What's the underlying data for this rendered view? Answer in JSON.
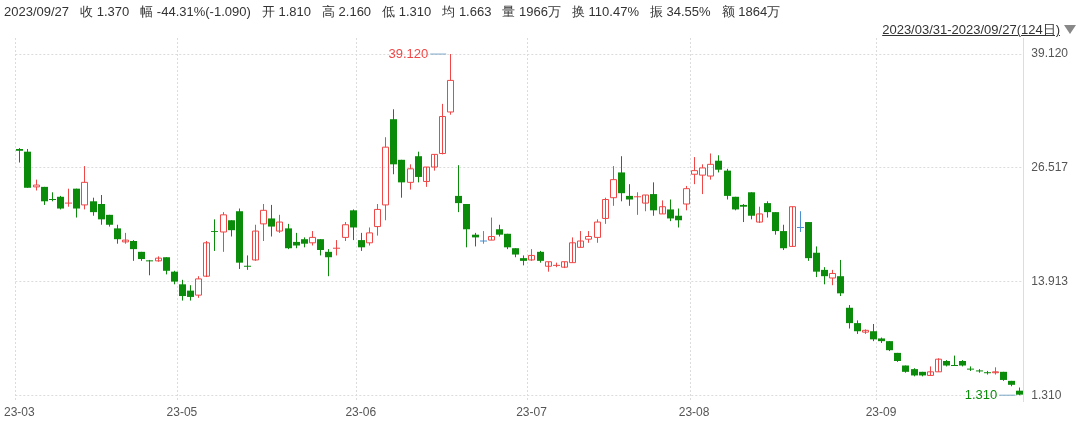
{
  "chart_data": {
    "type": "candlestick",
    "categories": [
      "23-03",
      null,
      null,
      null,
      null,
      null,
      null,
      null,
      null,
      null,
      null,
      null,
      null,
      null,
      null,
      null,
      null,
      null,
      null,
      null,
      "23-05",
      null,
      null,
      null,
      null,
      null,
      null,
      null,
      null,
      null,
      null,
      null,
      null,
      null,
      null,
      null,
      null,
      null,
      null,
      null,
      null,
      null,
      "23-06",
      null,
      null,
      null,
      null,
      null,
      null,
      null,
      null,
      null,
      null,
      null,
      null,
      null,
      null,
      null,
      null,
      null,
      null,
      null,
      null,
      "23-07",
      null,
      null,
      null,
      null,
      null,
      null,
      null,
      null,
      null,
      null,
      null,
      null,
      null,
      null,
      null,
      null,
      null,
      null,
      null,
      "23-08",
      null,
      null,
      null,
      null,
      null,
      null,
      null,
      null,
      null,
      null,
      null,
      null,
      null,
      null,
      null,
      null,
      null,
      null,
      null,
      null,
      null,
      null,
      "23-09",
      null,
      null,
      null,
      null,
      null,
      null,
      null,
      null,
      null,
      null,
      null,
      null,
      null,
      null,
      null,
      null,
      null
    ],
    "ohlc": [
      [
        28.6,
        28.7,
        27.1,
        28.4
      ],
      [
        28.3,
        28.6,
        24.3,
        24.3
      ],
      [
        24.4,
        25.2,
        24.0,
        24.6
      ],
      [
        24.4,
        24.4,
        22.4,
        22.8
      ],
      [
        23.0,
        23.8,
        22.8,
        23.0
      ],
      [
        23.3,
        23.4,
        21.9,
        22.0
      ],
      [
        22.6,
        24.2,
        22.2,
        22.6
      ],
      [
        24.2,
        24.2,
        21.0,
        22.0
      ],
      [
        22.4,
        26.7,
        21.9,
        24.9
      ],
      [
        22.8,
        23.2,
        21.2,
        21.6
      ],
      [
        22.5,
        23.5,
        20.2,
        20.8
      ],
      [
        21.3,
        21.3,
        20.0,
        20.2
      ],
      [
        19.8,
        20.2,
        18.1,
        18.6
      ],
      [
        18.3,
        19.3,
        18.1,
        18.5
      ],
      [
        18.4,
        18.5,
        16.2,
        17.5
      ],
      [
        17.2,
        17.2,
        16.2,
        16.4
      ],
      [
        16.2,
        16.3,
        14.6,
        16.2
      ],
      [
        16.2,
        16.7,
        16.1,
        16.5
      ],
      [
        16.6,
        16.6,
        14.7,
        15.1
      ],
      [
        15.0,
        15.1,
        13.6,
        13.9
      ],
      [
        13.6,
        14.1,
        11.8,
        12.3
      ],
      [
        12.9,
        13.5,
        11.8,
        12.2
      ],
      [
        12.4,
        14.5,
        12.1,
        14.2
      ],
      [
        14.5,
        18.4,
        14.4,
        18.2
      ],
      [
        19.5,
        20.8,
        17.3,
        19.4
      ],
      [
        19.4,
        21.6,
        17.2,
        21.3
      ],
      [
        20.7,
        20.7,
        18.9,
        19.6
      ],
      [
        21.7,
        22.0,
        15.3,
        16.0
      ],
      [
        15.6,
        16.8,
        15.2,
        15.6
      ],
      [
        16.3,
        20.2,
        16.2,
        19.5
      ],
      [
        20.3,
        22.5,
        18.4,
        21.8
      ],
      [
        20.9,
        22.4,
        18.9,
        20.0
      ],
      [
        19.5,
        21.3,
        19.3,
        20.5
      ],
      [
        19.8,
        20.3,
        17.5,
        17.6
      ],
      [
        18.3,
        19.3,
        17.6,
        17.9
      ],
      [
        18.6,
        18.8,
        17.7,
        18.1
      ],
      [
        18.2,
        19.5,
        17.9,
        18.8
      ],
      [
        18.6,
        18.6,
        16.8,
        17.4
      ],
      [
        17.2,
        17.5,
        14.5,
        16.6
      ],
      [
        17.6,
        18.5,
        16.8,
        17.6
      ],
      [
        18.8,
        20.5,
        18.4,
        20.2
      ],
      [
        21.8,
        21.9,
        18.5,
        19.9
      ],
      [
        18.5,
        19.3,
        17.3,
        17.7
      ],
      [
        18.2,
        19.9,
        17.9,
        19.3
      ],
      [
        20.0,
        22.5,
        19.0,
        21.9
      ],
      [
        22.4,
        29.9,
        20.7,
        28.8
      ],
      [
        31.9,
        33.0,
        25.8,
        26.9
      ],
      [
        27.4,
        27.4,
        23.2,
        24.9
      ],
      [
        24.9,
        26.9,
        24.1,
        26.4
      ],
      [
        27.8,
        28.3,
        24.9,
        25.5
      ],
      [
        25.0,
        26.6,
        24.4,
        26.6
      ],
      [
        26.6,
        28.0,
        26.2,
        28.0
      ],
      [
        28.1,
        33.6,
        28.0,
        32.2
      ],
      [
        32.7,
        39.12,
        32.4,
        36.2
      ],
      [
        23.4,
        26.8,
        21.6,
        22.6
      ],
      [
        22.5,
        22.5,
        17.7,
        19.7
      ],
      [
        19.1,
        19.3,
        17.8,
        18.8
      ],
      [
        18.4,
        19.5,
        18.1,
        18.4
      ],
      [
        18.5,
        21.0,
        18.5,
        18.9
      ],
      [
        19.7,
        20.2,
        18.9,
        19.1
      ],
      [
        19.2,
        19.2,
        17.5,
        17.7
      ],
      [
        17.6,
        17.6,
        16.6,
        16.9
      ],
      [
        16.5,
        16.8,
        15.7,
        16.2
      ],
      [
        16.3,
        17.5,
        16.2,
        16.8
      ],
      [
        17.2,
        17.3,
        16.0,
        16.2
      ],
      [
        15.6,
        16.1,
        15.0,
        16.1
      ],
      [
        15.7,
        16.0,
        15.5,
        15.7
      ],
      [
        15.5,
        16.1,
        15.4,
        16.1
      ],
      [
        16.0,
        18.8,
        16.0,
        18.2
      ],
      [
        17.7,
        19.5,
        17.7,
        18.4
      ],
      [
        18.6,
        19.5,
        18.2,
        18.9
      ],
      [
        18.8,
        20.8,
        18.2,
        20.5
      ],
      [
        20.9,
        23.2,
        20.3,
        23.0
      ],
      [
        23.2,
        26.7,
        22.3,
        25.2
      ],
      [
        26.0,
        27.8,
        22.8,
        23.7
      ],
      [
        23.4,
        24.7,
        22.3,
        23.0
      ],
      [
        23.3,
        23.8,
        21.3,
        23.3
      ],
      [
        22.6,
        23.5,
        21.7,
        23.5
      ],
      [
        23.6,
        24.9,
        21.2,
        21.8
      ],
      [
        21.4,
        22.9,
        21.4,
        22.2
      ],
      [
        21.9,
        23.0,
        20.6,
        20.9
      ],
      [
        21.2,
        22.0,
        19.9,
        20.7
      ],
      [
        22.5,
        24.5,
        21.8,
        24.2
      ],
      [
        25.8,
        27.7,
        24.7,
        26.2
      ],
      [
        25.7,
        26.9,
        23.6,
        26.5
      ],
      [
        25.6,
        28.1,
        25.2,
        26.9
      ],
      [
        27.3,
        27.9,
        26.0,
        26.3
      ],
      [
        26.2,
        26.4,
        23.0,
        23.4
      ],
      [
        23.3,
        23.3,
        21.8,
        21.9
      ],
      [
        22.4,
        22.5,
        20.5,
        22.2
      ],
      [
        23.8,
        23.8,
        20.8,
        21.2
      ],
      [
        20.5,
        22.2,
        20.4,
        21.4
      ],
      [
        22.6,
        22.8,
        21.0,
        21.6
      ],
      [
        21.6,
        21.6,
        19.1,
        19.5
      ],
      [
        19.5,
        20.2,
        17.4,
        17.6
      ],
      [
        17.8,
        22.2,
        17.8,
        22.2
      ],
      [
        19.9,
        21.7,
        19.4,
        19.9
      ],
      [
        20.5,
        20.5,
        16.2,
        16.5
      ],
      [
        17.1,
        17.8,
        14.4,
        15.0
      ],
      [
        15.2,
        15.5,
        13.6,
        14.5
      ],
      [
        14.3,
        15.2,
        13.5,
        14.8
      ],
      [
        14.5,
        16.3,
        12.3,
        12.6
      ],
      [
        11.0,
        11.3,
        8.7,
        9.3
      ],
      [
        9.3,
        9.6,
        8.1,
        8.4
      ],
      [
        8.3,
        8.6,
        8.1,
        8.5
      ],
      [
        8.4,
        9.2,
        7.3,
        7.5
      ],
      [
        7.6,
        7.7,
        7.1,
        7.3
      ],
      [
        7.3,
        7.3,
        6.2,
        6.3
      ],
      [
        6.0,
        6.0,
        5.0,
        5.1
      ],
      [
        4.6,
        4.6,
        3.8,
        3.9
      ],
      [
        4.2,
        4.3,
        3.4,
        3.5
      ],
      [
        3.9,
        3.9,
        3.4,
        3.5
      ],
      [
        3.5,
        4.5,
        3.5,
        3.9
      ],
      [
        3.9,
        5.4,
        3.9,
        5.3
      ],
      [
        5.1,
        5.2,
        4.5,
        4.6
      ],
      [
        4.6,
        5.7,
        4.6,
        4.6
      ],
      [
        5.1,
        5.2,
        4.5,
        4.6
      ],
      [
        4.2,
        4.5,
        4.0,
        4.2
      ],
      [
        4.0,
        4.2,
        3.8,
        4.0
      ],
      [
        3.8,
        4.0,
        3.6,
        3.8
      ],
      [
        3.8,
        4.4,
        3.6,
        3.9
      ],
      [
        3.9,
        3.9,
        2.9,
        3.0
      ],
      [
        2.9,
        2.9,
        2.3,
        2.46
      ],
      [
        1.81,
        2.16,
        1.31,
        1.37
      ]
    ],
    "colors": [
      "#0a8c0a",
      "#0a8c0a",
      "#f04646",
      "#0a8c0a",
      "#0a8c0a",
      "#0a8c0a",
      "#f04646",
      "#0a8c0a",
      "#f04646",
      "#0a8c0a",
      "#0a8c0a",
      "#0a8c0a",
      "#0a8c0a",
      "#f04646",
      "#0a8c0a",
      "#0a8c0a",
      "#0a8c0a",
      "#f04646",
      "#0a8c0a",
      "#0a8c0a",
      "#0a8c0a",
      "#0a8c0a",
      "#f04646",
      "#f04646",
      "#0a8c0a",
      "#f04646",
      "#0a8c0a",
      "#0a8c0a",
      "#0a8c0a",
      "#f04646",
      "#f04646",
      "#0a8c0a",
      "#f04646",
      "#0a8c0a",
      "#0a8c0a",
      "#0a8c0a",
      "#f04646",
      "#0a8c0a",
      "#0a8c0a",
      "#f04646",
      "#f04646",
      "#0a8c0a",
      "#0a8c0a",
      "#f04646",
      "#f04646",
      "#f04646",
      "#0a8c0a",
      "#0a8c0a",
      "#f04646",
      "#0a8c0a",
      "#f04646",
      "#f04646",
      "#f04646",
      "#f04646",
      "#0a8c0a",
      "#0a8c0a",
      "#0a8c0a",
      "#4a8fd0",
      "#f04646",
      "#0a8c0a",
      "#0a8c0a",
      "#0a8c0a",
      "#0a8c0a",
      "#f04646",
      "#0a8c0a",
      "#f04646",
      "#f04646",
      "#f04646",
      "#f04646",
      "#f04646",
      "#f04646",
      "#f04646",
      "#f04646",
      "#f04646",
      "#0a8c0a",
      "#0a8c0a",
      "#f04646",
      "#f04646",
      "#0a8c0a",
      "#f04646",
      "#0a8c0a",
      "#0a8c0a",
      "#f04646",
      "#f04646",
      "#f04646",
      "#f04646",
      "#0a8c0a",
      "#0a8c0a",
      "#0a8c0a",
      "#0a8c0a",
      "#0a8c0a",
      "#f04646",
      "#0a8c0a",
      "#0a8c0a",
      "#0a8c0a",
      "#f04646",
      "#4a8fd0",
      "#0a8c0a",
      "#0a8c0a",
      "#0a8c0a",
      "#f04646",
      "#0a8c0a",
      "#0a8c0a",
      "#0a8c0a",
      "#f04646",
      "#0a8c0a",
      "#0a8c0a",
      "#0a8c0a",
      "#0a8c0a",
      "#0a8c0a",
      "#0a8c0a",
      "#0a8c0a",
      "#f04646",
      "#f04646",
      "#0a8c0a",
      "#0a8c0a",
      "#0a8c0a",
      "#0a8c0a",
      "#0a8c0a",
      "#0a8c0a",
      "#f04646",
      "#0a8c0a",
      "#0a8c0a",
      "#0a8c0a"
    ],
    "ylim": [
      0.6,
      40.9
    ],
    "yticks": [
      {
        "value": 1.31,
        "label": "1.310"
      },
      {
        "value": 13.913,
        "label": "13.913"
      },
      {
        "value": 26.517,
        "label": "26.517"
      },
      {
        "value": 39.12,
        "label": "39.120"
      }
    ],
    "grid": true,
    "annotations": [
      "2023/09/27",
      "收 1.370",
      "幅 -44.31%(-1.090)",
      "开 1.810",
      "高 2.160",
      "低 1.310",
      "均 1.663",
      "量 1966万",
      "换 110.47%",
      "振 34.55%",
      "额 1864万",
      "2023/03/31-2023/09/27(124日)",
      "39.120",
      "1.310"
    ]
  }
}
